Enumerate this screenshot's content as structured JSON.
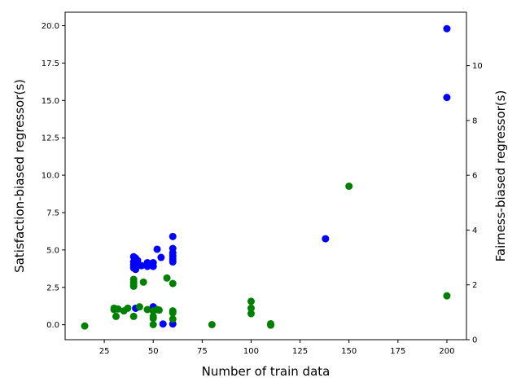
{
  "chart_data": {
    "type": "scatter",
    "xlabel": "Number of train data",
    "ylabel_left": "Satisfaction-biased regressor(s)",
    "ylabel_right": "Fairness-biased regressor(s)",
    "xlim": [
      5,
      210
    ],
    "ylim_left": [
      -1.0,
      20.9
    ],
    "ylim_right": [
      0,
      11.95
    ],
    "x_ticks": [
      25,
      50,
      75,
      100,
      125,
      150,
      175,
      200
    ],
    "x_tick_labels": [
      "25",
      "50",
      "75",
      "100",
      "125",
      "150",
      "175",
      "200"
    ],
    "y_left_ticks": [
      0,
      2.5,
      5,
      7.5,
      10,
      12.5,
      15,
      17.5,
      20
    ],
    "y_left_tick_labels": [
      "0.0",
      "2.5",
      "5.0",
      "7.5",
      "10.0",
      "12.5",
      "15.0",
      "17.5",
      "20.0"
    ],
    "y_right_ticks": [
      0,
      2,
      4,
      6,
      8,
      10
    ],
    "y_right_tick_labels": [
      "0",
      "2",
      "4",
      "6",
      "8",
      "10"
    ],
    "grid": false,
    "series": [
      {
        "axis": "left",
        "color": "#0000ff",
        "points": [
          [
            40,
            4.55
          ],
          [
            41,
            4.45
          ],
          [
            42,
            4.3
          ],
          [
            40,
            4.2
          ],
          [
            41,
            4.1
          ],
          [
            40,
            4.0
          ],
          [
            42,
            3.95
          ],
          [
            40,
            3.8
          ],
          [
            41,
            3.7
          ],
          [
            44,
            3.95
          ],
          [
            47,
            4.15
          ],
          [
            47,
            3.9
          ],
          [
            50,
            4.15
          ],
          [
            50,
            3.9
          ],
          [
            52,
            5.05
          ],
          [
            54,
            4.5
          ],
          [
            60,
            5.9
          ],
          [
            60,
            5.1
          ],
          [
            60,
            4.8
          ],
          [
            60,
            4.6
          ],
          [
            60,
            4.4
          ],
          [
            60,
            4.2
          ],
          [
            41,
            1.1
          ],
          [
            50,
            1.2
          ],
          [
            55,
            0.05
          ],
          [
            60,
            0.05
          ],
          [
            138,
            5.75
          ],
          [
            200,
            19.8
          ],
          [
            200,
            15.2
          ]
        ]
      },
      {
        "axis": "right",
        "color": "#008000",
        "points": [
          [
            15,
            0.5
          ],
          [
            30,
            1.15
          ],
          [
            30,
            1.1
          ],
          [
            31,
            0.85
          ],
          [
            32,
            1.12
          ],
          [
            35,
            1.05
          ],
          [
            37,
            1.15
          ],
          [
            40,
            2.2
          ],
          [
            40,
            2.1
          ],
          [
            40,
            2.0
          ],
          [
            40,
            1.95
          ],
          [
            40,
            0.85
          ],
          [
            43,
            1.2
          ],
          [
            45,
            2.1
          ],
          [
            47,
            1.1
          ],
          [
            50,
            1.05
          ],
          [
            50,
            0.85
          ],
          [
            50,
            0.78
          ],
          [
            50,
            0.55
          ],
          [
            52,
            1.1
          ],
          [
            53,
            1.08
          ],
          [
            57,
            2.25
          ],
          [
            60,
            2.05
          ],
          [
            60,
            1.05
          ],
          [
            60,
            0.98
          ],
          [
            60,
            0.75
          ],
          [
            80,
            0.55
          ],
          [
            100,
            1.4
          ],
          [
            100,
            1.15
          ],
          [
            100,
            0.95
          ],
          [
            110,
            0.58
          ],
          [
            110,
            0.53
          ],
          [
            150,
            5.6
          ],
          [
            200,
            1.6
          ]
        ]
      }
    ]
  }
}
